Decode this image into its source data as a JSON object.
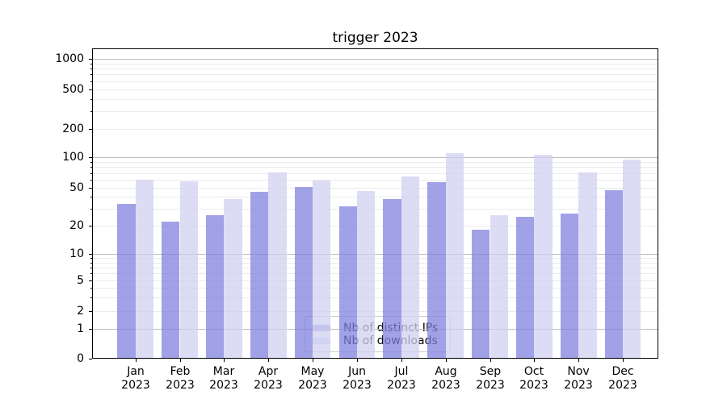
{
  "title": "trigger 2023",
  "chart_data": {
    "type": "bar",
    "title": "trigger 2023",
    "categories": [
      "Jan 2023",
      "Feb 2023",
      "Mar 2023",
      "Apr 2023",
      "May 2023",
      "Jun 2023",
      "Jul 2023",
      "Aug 2023",
      "Sep 2023",
      "Oct 2023",
      "Nov 2023",
      "Dec 2023"
    ],
    "series": [
      {
        "name": "Nb of distinct IPs",
        "color": "#8282e0",
        "values": [
          34,
          22,
          26,
          45,
          51,
          32,
          38,
          57,
          18,
          25,
          27,
          47
        ]
      },
      {
        "name": "Nb of downloads",
        "color": "#d0d0f2",
        "values": [
          60,
          58,
          38,
          71,
          59,
          46,
          65,
          110,
          26,
          106,
          71,
          95
        ]
      }
    ],
    "xlabel": "",
    "ylabel": "",
    "yscale": "symlog",
    "yticks": [
      0,
      1,
      2,
      5,
      10,
      20,
      50,
      100,
      200,
      500,
      1000
    ],
    "ylim": [
      0,
      1500
    ],
    "grid": true,
    "legend_position": "bottom-center"
  },
  "colors": {
    "grid_major": "#bdbdbd",
    "grid_minor": "#ebebeb",
    "spine": "#000000",
    "legend_border": "#cccccc",
    "legend_bg": "rgba(255,255,255,0.8)"
  }
}
